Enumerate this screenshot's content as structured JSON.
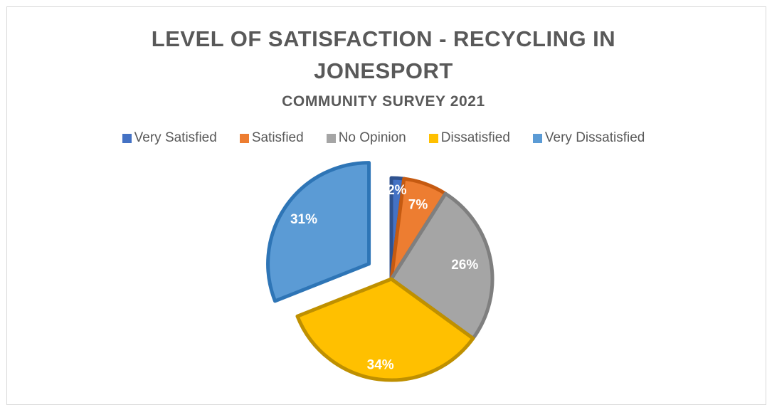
{
  "chart_data": {
    "type": "pie",
    "title_line1": "LEVEL OF SATISFACTION - RECYCLING IN",
    "title_line2": "JONESPORT",
    "subtitle": "COMMUNITY SURVEY 2021",
    "legend_placement": "top",
    "categories": [
      "Very Satisfied",
      "Satisfied",
      "No Opinion",
      "Dissatisfied",
      "Very Dissatisfied"
    ],
    "values": [
      2,
      7,
      26,
      34,
      31
    ],
    "labels": [
      "2%",
      "7%",
      "26%",
      "34%",
      "31%"
    ],
    "colors": [
      "#4472c4",
      "#ed7d31",
      "#a5a5a5",
      "#ffc000",
      "#5b9bd5"
    ],
    "edge_colors": [
      "#2f528f",
      "#c55a11",
      "#7f7f7f",
      "#bf9000",
      "#2e75b6"
    ],
    "exploded": [
      false,
      false,
      false,
      false,
      true
    ]
  }
}
